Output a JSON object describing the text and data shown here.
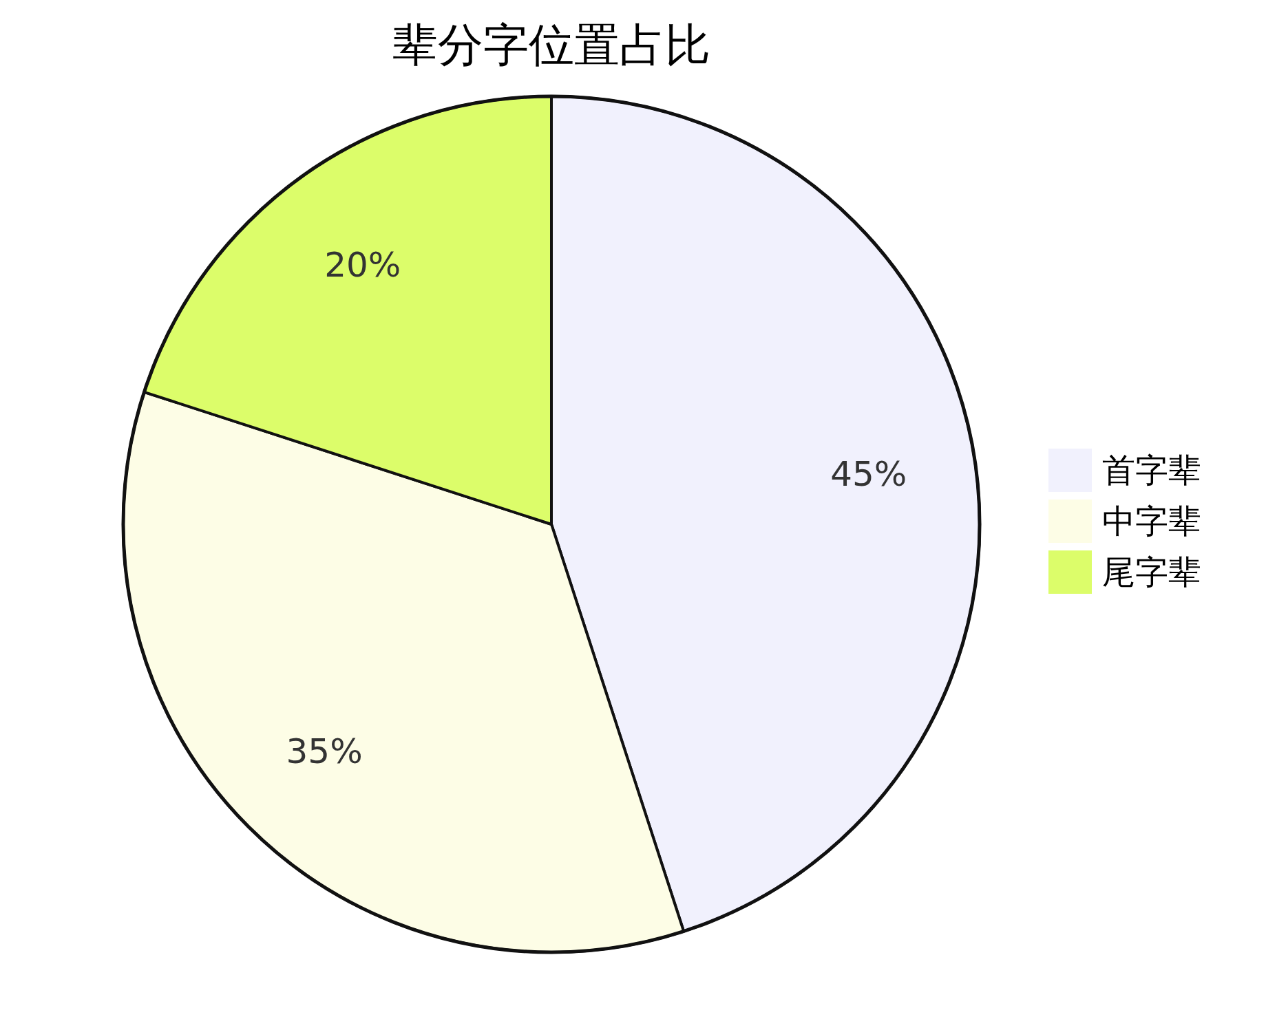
{
  "chart_data": {
    "type": "pie",
    "title": "辈分字位置占比",
    "categories": [
      "首字辈",
      "中字辈",
      "尾字辈"
    ],
    "values": [
      45,
      35,
      20
    ],
    "colors": [
      "#f1f1fd",
      "#fdfde6",
      "#dcfd6a"
    ],
    "value_labels": [
      "45%",
      "35%",
      "20%"
    ],
    "legend": "right"
  }
}
